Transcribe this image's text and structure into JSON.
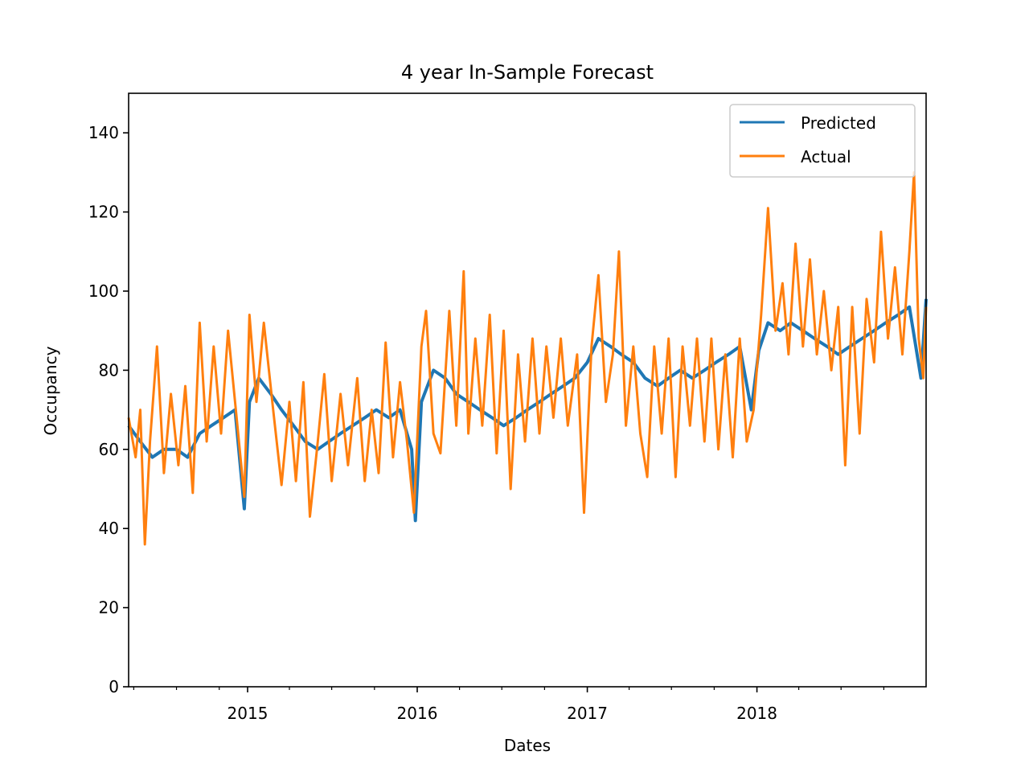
{
  "chart_data": {
    "type": "line",
    "title": "4 year In-Sample Forecast",
    "xlabel": "Dates",
    "ylabel": "Occupancy",
    "xlim": [
      "2014-04-20",
      "2018-12-31"
    ],
    "ylim": [
      0,
      150
    ],
    "y_ticks": [
      0,
      20,
      40,
      60,
      80,
      100,
      120,
      140
    ],
    "x_ticks": [
      {
        "date": "2015-01-01",
        "label": "2015"
      },
      {
        "date": "2016-01-01",
        "label": "2016"
      },
      {
        "date": "2017-01-01",
        "label": "2017"
      },
      {
        "date": "2018-01-01",
        "label": "2018"
      }
    ],
    "x_minor_ticks": [
      "2014-05-01",
      "2014-08-01",
      "2014-11-01",
      "2015-04-01",
      "2015-07-01",
      "2015-10-01",
      "2016-04-01",
      "2016-07-01",
      "2016-10-01",
      "2017-04-01",
      "2017-07-01",
      "2017-10-01",
      "2018-04-01",
      "2018-07-01",
      "2018-10-01"
    ],
    "legend": {
      "position": "upper right"
    },
    "grid": false,
    "series": [
      {
        "name": "Predicted",
        "color": "#1f77b4",
        "points": [
          [
            "2014-04-20",
            66
          ],
          [
            "2014-05-15",
            62
          ],
          [
            "2014-06-10",
            58
          ],
          [
            "2014-07-05",
            60
          ],
          [
            "2014-08-01",
            60
          ],
          [
            "2014-08-25",
            58
          ],
          [
            "2014-09-20",
            64
          ],
          [
            "2014-10-15",
            66
          ],
          [
            "2014-11-10",
            68
          ],
          [
            "2014-12-05",
            70
          ],
          [
            "2014-12-25",
            45
          ],
          [
            "2015-01-05",
            72
          ],
          [
            "2015-01-25",
            78
          ],
          [
            "2015-02-20",
            74
          ],
          [
            "2015-03-15",
            70
          ],
          [
            "2015-04-10",
            66
          ],
          [
            "2015-05-05",
            62
          ],
          [
            "2015-06-01",
            60
          ],
          [
            "2015-06-25",
            62
          ],
          [
            "2015-07-20",
            64
          ],
          [
            "2015-08-15",
            66
          ],
          [
            "2015-09-10",
            68
          ],
          [
            "2015-10-05",
            70
          ],
          [
            "2015-11-01",
            68
          ],
          [
            "2015-11-25",
            70
          ],
          [
            "2015-12-20",
            60
          ],
          [
            "2015-12-28",
            42
          ],
          [
            "2016-01-10",
            72
          ],
          [
            "2016-02-05",
            80
          ],
          [
            "2016-03-01",
            78
          ],
          [
            "2016-03-25",
            74
          ],
          [
            "2016-04-20",
            72
          ],
          [
            "2016-05-15",
            70
          ],
          [
            "2016-06-10",
            68
          ],
          [
            "2016-07-05",
            66
          ],
          [
            "2016-08-01",
            68
          ],
          [
            "2016-08-25",
            70
          ],
          [
            "2016-09-20",
            72
          ],
          [
            "2016-10-15",
            74
          ],
          [
            "2016-11-10",
            76
          ],
          [
            "2016-12-05",
            78
          ],
          [
            "2017-01-01",
            82
          ],
          [
            "2017-01-25",
            88
          ],
          [
            "2017-02-20",
            86
          ],
          [
            "2017-03-15",
            84
          ],
          [
            "2017-04-10",
            82
          ],
          [
            "2017-05-05",
            78
          ],
          [
            "2017-06-01",
            76
          ],
          [
            "2017-06-25",
            78
          ],
          [
            "2017-07-20",
            80
          ],
          [
            "2017-08-15",
            78
          ],
          [
            "2017-09-10",
            80
          ],
          [
            "2017-10-05",
            82
          ],
          [
            "2017-11-01",
            84
          ],
          [
            "2017-11-25",
            86
          ],
          [
            "2017-12-20",
            70
          ],
          [
            "2018-01-05",
            85
          ],
          [
            "2018-01-25",
            92
          ],
          [
            "2018-02-20",
            90
          ],
          [
            "2018-03-15",
            92
          ],
          [
            "2018-04-10",
            90
          ],
          [
            "2018-05-05",
            88
          ],
          [
            "2018-06-01",
            86
          ],
          [
            "2018-06-25",
            84
          ],
          [
            "2018-07-20",
            86
          ],
          [
            "2018-08-15",
            88
          ],
          [
            "2018-09-10",
            90
          ],
          [
            "2018-10-05",
            92
          ],
          [
            "2018-11-01",
            94
          ],
          [
            "2018-11-25",
            96
          ],
          [
            "2018-12-20",
            78
          ],
          [
            "2018-12-31",
            98
          ]
        ]
      },
      {
        "name": "Actual",
        "color": "#ff7f0e",
        "points": [
          [
            "2014-04-20",
            68
          ],
          [
            "2014-05-05",
            58
          ],
          [
            "2014-05-15",
            70
          ],
          [
            "2014-05-25",
            36
          ],
          [
            "2014-06-05",
            62
          ],
          [
            "2014-06-20",
            86
          ],
          [
            "2014-07-05",
            54
          ],
          [
            "2014-07-20",
            74
          ],
          [
            "2014-08-05",
            56
          ],
          [
            "2014-08-20",
            76
          ],
          [
            "2014-09-05",
            49
          ],
          [
            "2014-09-20",
            92
          ],
          [
            "2014-10-05",
            62
          ],
          [
            "2014-10-20",
            86
          ],
          [
            "2014-11-05",
            64
          ],
          [
            "2014-11-20",
            90
          ],
          [
            "2014-12-10",
            66
          ],
          [
            "2014-12-25",
            48
          ],
          [
            "2015-01-05",
            94
          ],
          [
            "2015-01-20",
            72
          ],
          [
            "2015-02-05",
            92
          ],
          [
            "2015-02-25",
            70
          ],
          [
            "2015-03-15",
            51
          ],
          [
            "2015-04-01",
            72
          ],
          [
            "2015-04-15",
            52
          ],
          [
            "2015-05-01",
            77
          ],
          [
            "2015-05-15",
            43
          ],
          [
            "2015-06-01",
            62
          ],
          [
            "2015-06-15",
            79
          ],
          [
            "2015-07-01",
            52
          ],
          [
            "2015-07-20",
            74
          ],
          [
            "2015-08-05",
            56
          ],
          [
            "2015-08-25",
            78
          ],
          [
            "2015-09-10",
            52
          ],
          [
            "2015-09-25",
            70
          ],
          [
            "2015-10-10",
            54
          ],
          [
            "2015-10-25",
            87
          ],
          [
            "2015-11-10",
            58
          ],
          [
            "2015-11-25",
            77
          ],
          [
            "2015-12-10",
            62
          ],
          [
            "2015-12-25",
            44
          ],
          [
            "2016-01-10",
            86
          ],
          [
            "2016-01-20",
            95
          ],
          [
            "2016-02-05",
            64
          ],
          [
            "2016-02-20",
            59
          ],
          [
            "2016-03-10",
            95
          ],
          [
            "2016-03-25",
            66
          ],
          [
            "2016-04-10",
            105
          ],
          [
            "2016-04-20",
            64
          ],
          [
            "2016-05-05",
            88
          ],
          [
            "2016-05-20",
            66
          ],
          [
            "2016-06-05",
            94
          ],
          [
            "2016-06-20",
            59
          ],
          [
            "2016-07-05",
            90
          ],
          [
            "2016-07-20",
            50
          ],
          [
            "2016-08-05",
            84
          ],
          [
            "2016-08-20",
            62
          ],
          [
            "2016-09-05",
            88
          ],
          [
            "2016-09-20",
            64
          ],
          [
            "2016-10-05",
            86
          ],
          [
            "2016-10-20",
            68
          ],
          [
            "2016-11-05",
            88
          ],
          [
            "2016-11-20",
            66
          ],
          [
            "2016-12-10",
            84
          ],
          [
            "2016-12-25",
            44
          ],
          [
            "2017-01-10",
            86
          ],
          [
            "2017-01-25",
            104
          ],
          [
            "2017-02-10",
            72
          ],
          [
            "2017-02-25",
            84
          ],
          [
            "2017-03-10",
            110
          ],
          [
            "2017-03-25",
            66
          ],
          [
            "2017-04-10",
            86
          ],
          [
            "2017-04-25",
            64
          ],
          [
            "2017-05-10",
            53
          ],
          [
            "2017-05-25",
            86
          ],
          [
            "2017-06-10",
            64
          ],
          [
            "2017-06-25",
            88
          ],
          [
            "2017-07-10",
            53
          ],
          [
            "2017-07-25",
            86
          ],
          [
            "2017-08-10",
            66
          ],
          [
            "2017-08-25",
            88
          ],
          [
            "2017-09-10",
            62
          ],
          [
            "2017-09-25",
            88
          ],
          [
            "2017-10-10",
            60
          ],
          [
            "2017-10-25",
            84
          ],
          [
            "2017-11-10",
            58
          ],
          [
            "2017-11-25",
            88
          ],
          [
            "2017-12-10",
            62
          ],
          [
            "2017-12-25",
            70
          ],
          [
            "2018-01-10",
            94
          ],
          [
            "2018-01-25",
            121
          ],
          [
            "2018-02-10",
            90
          ],
          [
            "2018-02-25",
            102
          ],
          [
            "2018-03-10",
            84
          ],
          [
            "2018-03-25",
            112
          ],
          [
            "2018-04-10",
            86
          ],
          [
            "2018-04-25",
            108
          ],
          [
            "2018-05-10",
            84
          ],
          [
            "2018-05-25",
            100
          ],
          [
            "2018-06-10",
            80
          ],
          [
            "2018-06-25",
            96
          ],
          [
            "2018-07-10",
            56
          ],
          [
            "2018-07-25",
            96
          ],
          [
            "2018-08-10",
            64
          ],
          [
            "2018-08-25",
            98
          ],
          [
            "2018-09-10",
            82
          ],
          [
            "2018-09-25",
            115
          ],
          [
            "2018-10-10",
            88
          ],
          [
            "2018-10-25",
            106
          ],
          [
            "2018-11-10",
            84
          ],
          [
            "2018-11-25",
            110
          ],
          [
            "2018-12-05",
            130
          ],
          [
            "2018-12-15",
            88
          ],
          [
            "2018-12-25",
            78
          ],
          [
            "2018-12-31",
            96
          ]
        ]
      }
    ]
  }
}
